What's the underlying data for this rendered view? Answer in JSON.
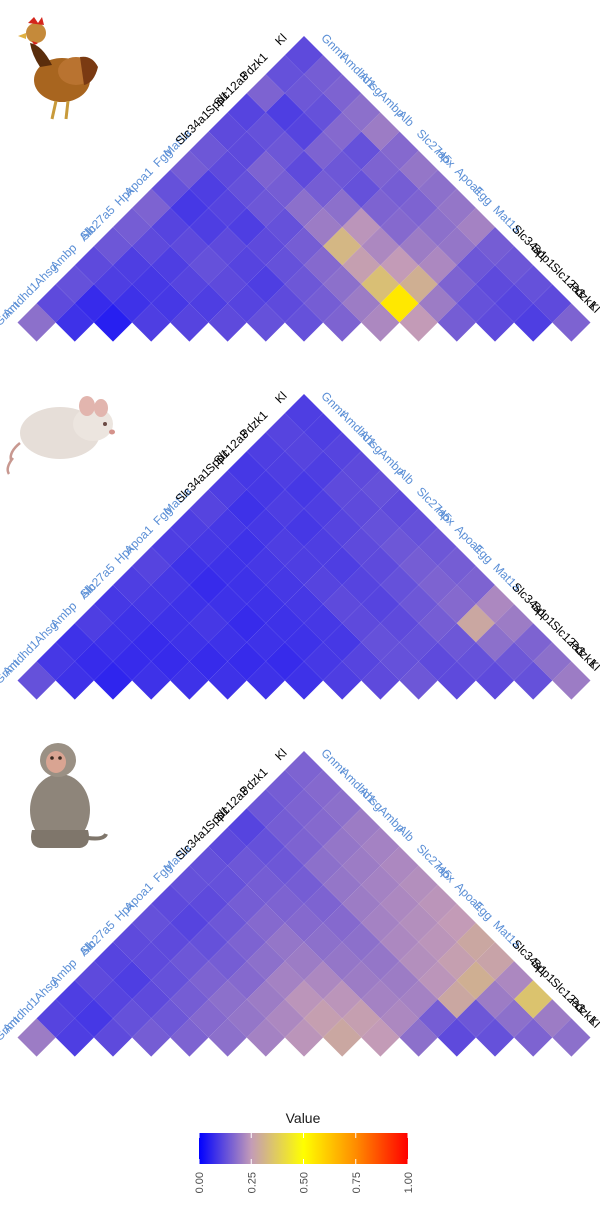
{
  "colors": {
    "liver_gene": "#5b8fd6",
    "kidney_gene": "#000000",
    "scale": [
      "#0000ff",
      "#c39bb7",
      "#ffff00",
      "#ff8c00",
      "#ff0000"
    ]
  },
  "legend": {
    "title": "Value",
    "ticks": [
      "0.00",
      "0.25",
      "0.50",
      "0.75",
      "1.00"
    ],
    "range": [
      0,
      1
    ]
  },
  "chart_data": [
    {
      "type": "heatmap",
      "icon": "chicken-icon",
      "genes": [
        "Gnmt",
        "Amdhd1",
        "Ahsg",
        "Ambp",
        "Alb",
        "Slc27a5",
        "Hpx",
        "Apoa1",
        "Fgg",
        "Mat1a",
        "Slc34a1",
        "Spp1",
        "Slc12a3",
        "Pdzk1",
        "Kl"
      ],
      "gene_groups": [
        "liver",
        "liver",
        "liver",
        "liver",
        "liver",
        "liver",
        "liver",
        "liver",
        "liver",
        "liver",
        "kidney",
        "kidney",
        "kidney",
        "kidney",
        "kidney"
      ],
      "values": [
        [
          0.18,
          0.12,
          0.13,
          0.12,
          0.14,
          0.15,
          0.16,
          0.13,
          0.15,
          0.14,
          0.12,
          0.11,
          0.16,
          0.13,
          0.12
        ],
        [
          0.12,
          0.08,
          0.07,
          0.1,
          0.1,
          0.12,
          0.11,
          0.09,
          0.1,
          0.12,
          0.12,
          0.13,
          0.1,
          0.14,
          0.15
        ],
        [
          0.13,
          0.07,
          0.05,
          0.08,
          0.09,
          0.1,
          0.12,
          0.1,
          0.11,
          0.13,
          0.16,
          0.14,
          0.11,
          0.13,
          0.16
        ],
        [
          0.12,
          0.1,
          0.08,
          0.1,
          0.09,
          0.11,
          0.13,
          0.12,
          0.1,
          0.14,
          0.15,
          0.12,
          0.16,
          0.17,
          0.18
        ],
        [
          0.14,
          0.1,
          0.09,
          0.09,
          0.11,
          0.1,
          0.12,
          0.11,
          0.12,
          0.13,
          0.18,
          0.15,
          0.14,
          0.13,
          0.2
        ],
        [
          0.15,
          0.12,
          0.1,
          0.11,
          0.1,
          0.12,
          0.11,
          0.1,
          0.13,
          0.15,
          0.2,
          0.18,
          0.13,
          0.16,
          0.17
        ],
        [
          0.16,
          0.11,
          0.12,
          0.13,
          0.12,
          0.11,
          0.13,
          0.12,
          0.14,
          0.17,
          0.32,
          0.24,
          0.16,
          0.15,
          0.19
        ],
        [
          0.13,
          0.09,
          0.1,
          0.12,
          0.11,
          0.1,
          0.12,
          0.13,
          0.15,
          0.18,
          0.26,
          0.22,
          0.17,
          0.16,
          0.18
        ],
        [
          0.15,
          0.1,
          0.11,
          0.1,
          0.12,
          0.13,
          0.14,
          0.15,
          0.16,
          0.2,
          0.34,
          0.25,
          0.2,
          0.18,
          0.19
        ],
        [
          0.14,
          0.12,
          0.13,
          0.14,
          0.13,
          0.15,
          0.17,
          0.18,
          0.2,
          0.22,
          0.55,
          0.3,
          0.22,
          0.19,
          0.21
        ],
        [
          0.12,
          0.12,
          0.16,
          0.15,
          0.18,
          0.2,
          0.32,
          0.26,
          0.34,
          0.55,
          0.25,
          0.2,
          0.16,
          0.14,
          0.15
        ],
        [
          0.11,
          0.13,
          0.14,
          0.12,
          0.15,
          0.18,
          0.24,
          0.22,
          0.25,
          0.3,
          0.2,
          0.15,
          0.13,
          0.12,
          0.14
        ],
        [
          0.16,
          0.1,
          0.11,
          0.16,
          0.14,
          0.13,
          0.16,
          0.17,
          0.2,
          0.22,
          0.16,
          0.13,
          0.12,
          0.11,
          0.13
        ],
        [
          0.13,
          0.14,
          0.13,
          0.17,
          0.13,
          0.16,
          0.15,
          0.16,
          0.18,
          0.19,
          0.14,
          0.12,
          0.11,
          0.1,
          0.12
        ],
        [
          0.12,
          0.15,
          0.16,
          0.18,
          0.2,
          0.17,
          0.19,
          0.18,
          0.19,
          0.21,
          0.15,
          0.14,
          0.13,
          0.12,
          0.16
        ]
      ]
    },
    {
      "type": "heatmap",
      "icon": "mouse-icon",
      "genes": [
        "Gnmt",
        "Amdhd1",
        "Ahsg",
        "Ambp",
        "Alb",
        "Slc27a5",
        "Hpx",
        "Apoa1",
        "Fgg",
        "Mat1a",
        "Slc34a1",
        "Spp1",
        "Slc12a3",
        "Pdzk1",
        "Kl"
      ],
      "gene_groups": [
        "liver",
        "liver",
        "liver",
        "liver",
        "liver",
        "liver",
        "liver",
        "liver",
        "liver",
        "liver",
        "kidney",
        "kidney",
        "kidney",
        "kidney",
        "kidney"
      ],
      "values": [
        [
          0.13,
          0.09,
          0.08,
          0.1,
          0.09,
          0.1,
          0.11,
          0.1,
          0.1,
          0.11,
          0.1,
          0.09,
          0.1,
          0.11,
          0.1
        ],
        [
          0.09,
          0.08,
          0.07,
          0.08,
          0.08,
          0.09,
          0.09,
          0.08,
          0.09,
          0.09,
          0.08,
          0.09,
          0.1,
          0.11,
          0.1
        ],
        [
          0.08,
          0.07,
          0.06,
          0.07,
          0.07,
          0.08,
          0.08,
          0.07,
          0.08,
          0.08,
          0.09,
          0.1,
          0.09,
          0.1,
          0.11
        ],
        [
          0.1,
          0.08,
          0.07,
          0.08,
          0.07,
          0.08,
          0.09,
          0.08,
          0.08,
          0.09,
          0.1,
          0.09,
          0.1,
          0.12,
          0.12
        ],
        [
          0.09,
          0.08,
          0.07,
          0.07,
          0.08,
          0.07,
          0.08,
          0.07,
          0.08,
          0.09,
          0.1,
          0.1,
          0.11,
          0.12,
          0.13
        ],
        [
          0.1,
          0.09,
          0.08,
          0.08,
          0.07,
          0.08,
          0.07,
          0.08,
          0.08,
          0.09,
          0.11,
          0.1,
          0.12,
          0.13,
          0.12
        ],
        [
          0.11,
          0.09,
          0.08,
          0.09,
          0.08,
          0.07,
          0.08,
          0.07,
          0.08,
          0.09,
          0.12,
          0.11,
          0.12,
          0.14,
          0.13
        ],
        [
          0.1,
          0.08,
          0.07,
          0.08,
          0.07,
          0.08,
          0.07,
          0.08,
          0.09,
          0.09,
          0.12,
          0.11,
          0.13,
          0.15,
          0.14
        ],
        [
          0.1,
          0.09,
          0.08,
          0.08,
          0.08,
          0.08,
          0.08,
          0.09,
          0.1,
          0.11,
          0.13,
          0.12,
          0.14,
          0.16,
          0.15
        ],
        [
          0.11,
          0.09,
          0.08,
          0.09,
          0.09,
          0.09,
          0.09,
          0.09,
          0.11,
          0.12,
          0.13,
          0.13,
          0.15,
          0.17,
          0.16
        ],
        [
          0.1,
          0.08,
          0.09,
          0.1,
          0.1,
          0.11,
          0.12,
          0.12,
          0.13,
          0.13,
          0.14,
          0.12,
          0.14,
          0.28,
          0.22
        ],
        [
          0.09,
          0.09,
          0.1,
          0.09,
          0.1,
          0.1,
          0.11,
          0.11,
          0.12,
          0.13,
          0.12,
          0.12,
          0.13,
          0.18,
          0.2
        ],
        [
          0.1,
          0.1,
          0.09,
          0.1,
          0.11,
          0.12,
          0.12,
          0.13,
          0.14,
          0.15,
          0.14,
          0.13,
          0.12,
          0.14,
          0.16
        ],
        [
          0.11,
          0.11,
          0.1,
          0.12,
          0.12,
          0.13,
          0.14,
          0.15,
          0.16,
          0.17,
          0.28,
          0.18,
          0.14,
          0.13,
          0.18
        ],
        [
          0.1,
          0.1,
          0.11,
          0.12,
          0.13,
          0.12,
          0.13,
          0.14,
          0.15,
          0.16,
          0.22,
          0.2,
          0.16,
          0.18,
          0.2
        ]
      ]
    },
    {
      "type": "heatmap",
      "icon": "monkey-icon",
      "genes": [
        "Gnmt",
        "Amdhd1",
        "Ahsg",
        "Ambp",
        "Alb",
        "Slc27a5",
        "Hpx",
        "Apoa1",
        "Fgg",
        "Mat1a",
        "Slc34a1",
        "Spp1",
        "Slc12a3",
        "Pdzk1",
        "Kl"
      ],
      "gene_groups": [
        "liver",
        "liver",
        "liver",
        "liver",
        "liver",
        "liver",
        "liver",
        "liver",
        "liver",
        "liver",
        "kidney",
        "kidney",
        "kidney",
        "kidney",
        "kidney"
      ],
      "values": [
        [
          0.2,
          0.11,
          0.1,
          0.12,
          0.11,
          0.12,
          0.13,
          0.12,
          0.13,
          0.13,
          0.12,
          0.11,
          0.14,
          0.15,
          0.16
        ],
        [
          0.11,
          0.1,
          0.09,
          0.11,
          0.1,
          0.12,
          0.12,
          0.11,
          0.12,
          0.13,
          0.14,
          0.13,
          0.15,
          0.16,
          0.17
        ],
        [
          0.1,
          0.09,
          0.12,
          0.13,
          0.12,
          0.13,
          0.14,
          0.13,
          0.14,
          0.15,
          0.15,
          0.14,
          0.16,
          0.17,
          0.18
        ],
        [
          0.12,
          0.11,
          0.13,
          0.15,
          0.14,
          0.15,
          0.16,
          0.15,
          0.16,
          0.17,
          0.16,
          0.15,
          0.18,
          0.19,
          0.2
        ],
        [
          0.11,
          0.1,
          0.12,
          0.14,
          0.16,
          0.17,
          0.18,
          0.17,
          0.18,
          0.19,
          0.17,
          0.16,
          0.19,
          0.2,
          0.21
        ],
        [
          0.12,
          0.12,
          0.13,
          0.15,
          0.17,
          0.18,
          0.19,
          0.2,
          0.21,
          0.2,
          0.18,
          0.17,
          0.2,
          0.21,
          0.22
        ],
        [
          0.13,
          0.12,
          0.14,
          0.16,
          0.18,
          0.19,
          0.21,
          0.22,
          0.24,
          0.22,
          0.19,
          0.18,
          0.21,
          0.22,
          0.23
        ],
        [
          0.12,
          0.11,
          0.13,
          0.15,
          0.17,
          0.2,
          0.22,
          0.24,
          0.26,
          0.24,
          0.2,
          0.19,
          0.22,
          0.23,
          0.24
        ],
        [
          0.13,
          0.12,
          0.14,
          0.16,
          0.18,
          0.21,
          0.24,
          0.26,
          0.28,
          0.26,
          0.21,
          0.2,
          0.23,
          0.24,
          0.25
        ],
        [
          0.13,
          0.13,
          0.15,
          0.17,
          0.19,
          0.2,
          0.22,
          0.24,
          0.26,
          0.25,
          0.22,
          0.21,
          0.24,
          0.26,
          0.28
        ],
        [
          0.12,
          0.14,
          0.15,
          0.16,
          0.17,
          0.18,
          0.19,
          0.2,
          0.21,
          0.22,
          0.18,
          0.15,
          0.28,
          0.3,
          0.27
        ],
        [
          0.11,
          0.13,
          0.14,
          0.15,
          0.16,
          0.17,
          0.18,
          0.19,
          0.2,
          0.21,
          0.15,
          0.12,
          0.14,
          0.2,
          0.22
        ],
        [
          0.14,
          0.15,
          0.16,
          0.18,
          0.19,
          0.2,
          0.21,
          0.22,
          0.23,
          0.24,
          0.28,
          0.14,
          0.13,
          0.18,
          0.35
        ],
        [
          0.15,
          0.16,
          0.17,
          0.19,
          0.2,
          0.21,
          0.22,
          0.23,
          0.24,
          0.26,
          0.3,
          0.2,
          0.18,
          0.16,
          0.2
        ],
        [
          0.16,
          0.17,
          0.18,
          0.2,
          0.21,
          0.22,
          0.23,
          0.24,
          0.25,
          0.28,
          0.27,
          0.22,
          0.35,
          0.2,
          0.18
        ]
      ]
    }
  ]
}
